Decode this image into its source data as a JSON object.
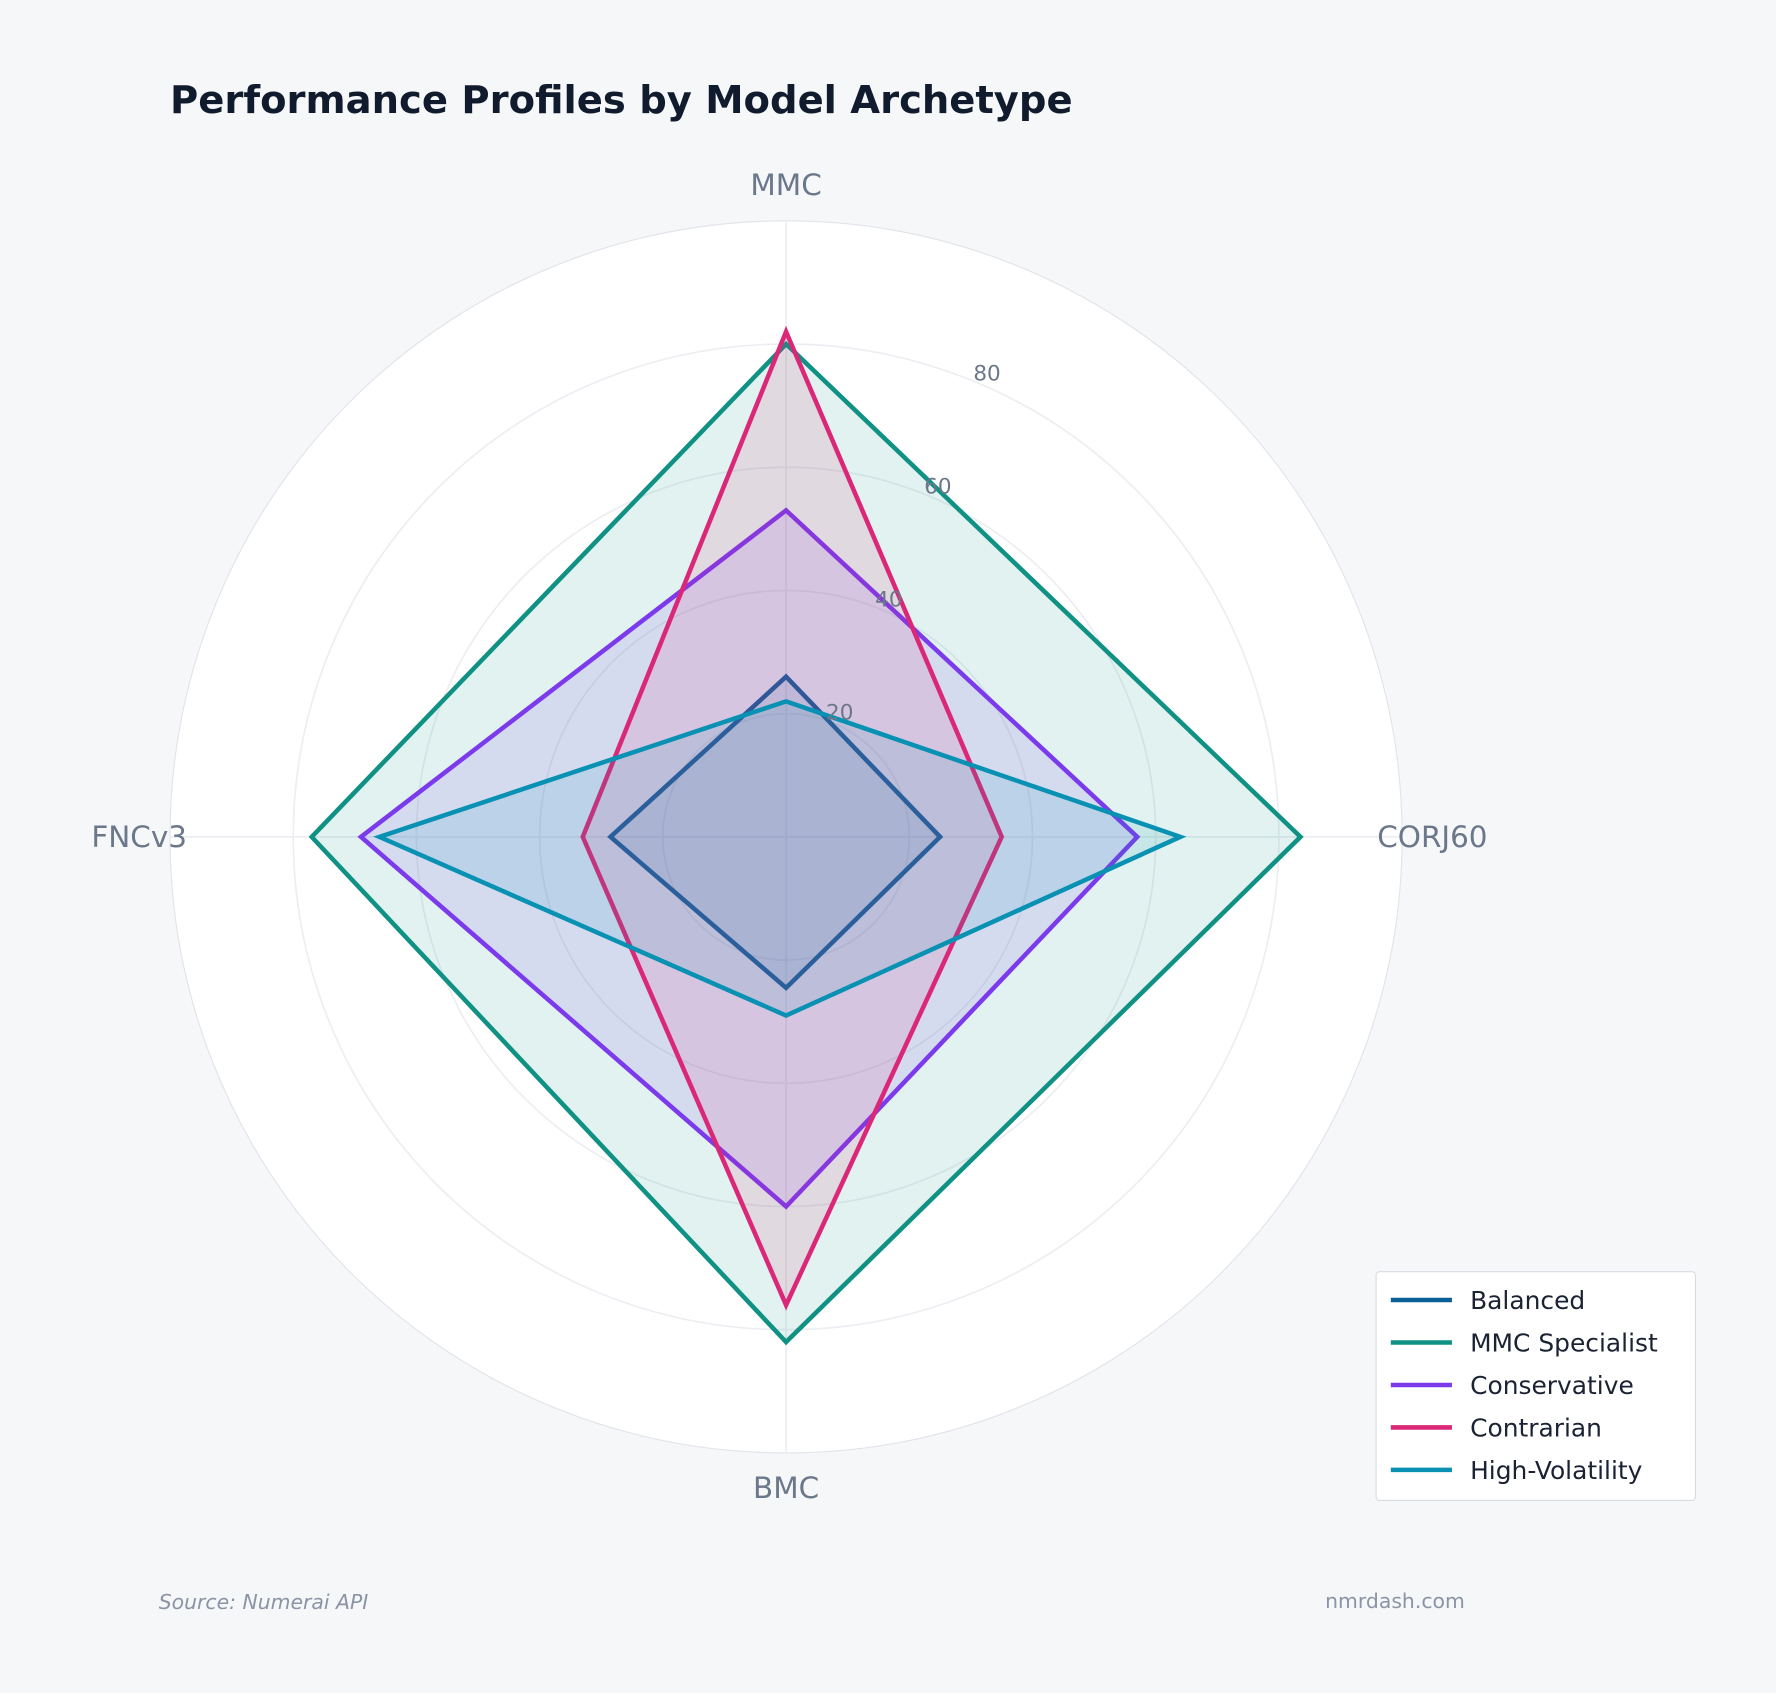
{
  "chart_data": {
    "type": "radar",
    "title": "Performance Profiles by Model Archetype",
    "axes": [
      "MMC",
      "CORJ60",
      "BMC",
      "FNCv3"
    ],
    "radial_range": [
      0,
      100
    ],
    "radial_ticks": [
      "20",
      "40",
      "60",
      "80"
    ],
    "grid": true,
    "legend_position": "bottom-right",
    "series": [
      {
        "name": "Balanced",
        "color": "#0b5f97",
        "values": [
          26,
          25,
          24.5,
          28.5
        ]
      },
      {
        "name": "MMC Specialist",
        "color": "#0f9184",
        "values": [
          80,
          83.5,
          82,
          77
        ]
      },
      {
        "name": "Conservative",
        "color": "#7c3aed",
        "values": [
          53,
          57,
          60,
          69
        ]
      },
      {
        "name": "Contrarian",
        "color": "#db2777",
        "values": [
          82,
          35,
          76,
          33
        ]
      },
      {
        "name": "High-Volatility",
        "color": "#0891b2",
        "values": [
          22,
          64,
          29,
          66
        ]
      }
    ]
  },
  "footer": {
    "source": "Source: Numerai API",
    "site": "nmrdash.com"
  }
}
